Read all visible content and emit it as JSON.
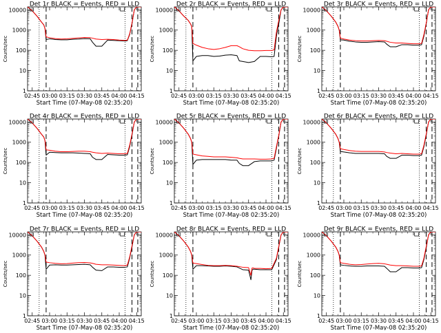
{
  "figure": {
    "x_ticks": [
      "02:45",
      "03:00",
      "03:15",
      "03:30",
      "03:45",
      "04:00",
      "04:15"
    ],
    "x_tick_minutes": [
      0,
      15,
      30,
      45,
      60,
      75,
      90
    ],
    "x_range_minutes": [
      -4,
      94
    ],
    "y_ticks": [
      "1",
      "10",
      "100",
      "1000",
      "10000"
    ],
    "y_tick_values": [
      1,
      10,
      100,
      1000,
      10000
    ],
    "y_range": [
      1,
      14000
    ],
    "y_scale": "log",
    "series_colors": {
      "events": "#000000",
      "lld": "#ff0000"
    }
  },
  "chart_data": [
    {
      "type": "line",
      "y_scale": "log",
      "title": "Det 1r BLACK = Events, RED = LLD",
      "xlabel": "Start Time (07-May-08 02:35:20)",
      "ylabel": "Counts/sec",
      "x_minutes": [
        -4,
        0,
        4,
        8,
        10,
        11,
        12,
        15,
        20,
        25,
        30,
        35,
        40,
        45,
        50,
        52,
        55,
        60,
        65,
        70,
        75,
        80,
        82,
        84,
        86,
        88,
        90,
        92,
        94
      ],
      "events": [
        14000,
        9000,
        5000,
        2500,
        1800,
        1200,
        340,
        370,
        340,
        330,
        330,
        350,
        360,
        380,
        370,
        250,
        160,
        160,
        320,
        310,
        300,
        290,
        300,
        600,
        2000,
        10000,
        14000,
        14000,
        14000
      ],
      "lld": [
        14000,
        9000,
        5000,
        2500,
        1800,
        1200,
        460,
        420,
        380,
        360,
        370,
        390,
        410,
        430,
        420,
        400,
        360,
        340,
        350,
        340,
        320,
        310,
        320,
        650,
        2200,
        10000,
        14000,
        14000,
        14000
      ],
      "dotted_lines": [
        6,
        80,
        95
      ],
      "dashed_lines": [
        12,
        86,
        91
      ]
    },
    {
      "type": "line",
      "y_scale": "log",
      "title": "Det 2r BLACK = Events, RED = LLD",
      "xlabel": "Start Time (07-May-08 02:35:20)",
      "ylabel": "Counts/sec",
      "x_minutes": [
        -4,
        0,
        4,
        8,
        10,
        11,
        12,
        15,
        20,
        25,
        30,
        35,
        40,
        45,
        50,
        52,
        55,
        60,
        65,
        70,
        75,
        80,
        82,
        84,
        86,
        88,
        90,
        92,
        94
      ],
      "events": [
        14000,
        9000,
        5000,
        3000,
        2000,
        1500,
        30,
        50,
        55,
        55,
        50,
        52,
        58,
        60,
        55,
        30,
        28,
        25,
        28,
        50,
        50,
        48,
        50,
        500,
        2000,
        10000,
        14000,
        14000,
        14000
      ],
      "lld": [
        14000,
        9000,
        5000,
        3000,
        2000,
        1500,
        220,
        180,
        140,
        120,
        110,
        120,
        140,
        170,
        170,
        150,
        120,
        100,
        95,
        95,
        98,
        98,
        105,
        800,
        3000,
        10000,
        14000,
        14000,
        14000
      ],
      "dotted_lines": [
        6,
        80,
        95
      ],
      "dashed_lines": [
        12,
        86,
        91
      ]
    },
    {
      "type": "line",
      "y_scale": "log",
      "title": "Det 3r BLACK = Events, RED = LLD",
      "xlabel": "Start Time (07-May-08 02:35:20)",
      "ylabel": "Counts/sec",
      "x_minutes": [
        -4,
        0,
        4,
        8,
        10,
        11,
        12,
        15,
        20,
        25,
        30,
        35,
        40,
        45,
        50,
        52,
        55,
        60,
        65,
        70,
        75,
        80,
        82,
        84,
        86,
        88,
        90,
        92,
        94
      ],
      "events": [
        14000,
        9000,
        5000,
        2500,
        1500,
        1000,
        330,
        320,
        280,
        260,
        250,
        250,
        260,
        270,
        260,
        200,
        150,
        150,
        190,
        190,
        180,
        180,
        190,
        500,
        2000,
        10000,
        14000,
        14000,
        14000
      ],
      "lld": [
        14000,
        9000,
        5000,
        2500,
        1500,
        1000,
        400,
        360,
        320,
        300,
        290,
        290,
        300,
        310,
        300,
        280,
        250,
        230,
        230,
        220,
        210,
        210,
        220,
        600,
        2200,
        10000,
        14000,
        14000,
        14000
      ],
      "dotted_lines": [
        6,
        80,
        95
      ],
      "dashed_lines": [
        12,
        86,
        91
      ]
    },
    {
      "type": "line",
      "y_scale": "log",
      "title": "Det 4r BLACK = Events, RED = LLD",
      "xlabel": "Start Time (07-May-08 02:35:20)",
      "ylabel": "Counts/sec",
      "x_minutes": [
        -4,
        0,
        4,
        8,
        10,
        11,
        12,
        15,
        20,
        25,
        30,
        35,
        40,
        45,
        50,
        52,
        55,
        60,
        65,
        70,
        75,
        80,
        82,
        84,
        86,
        88,
        90,
        92,
        94
      ],
      "events": [
        14000,
        9000,
        5000,
        2500,
        1800,
        1200,
        230,
        320,
        310,
        300,
        300,
        300,
        290,
        280,
        270,
        180,
        140,
        140,
        250,
        240,
        230,
        230,
        240,
        600,
        2200,
        10000,
        14000,
        14000,
        14000
      ],
      "lld": [
        14000,
        9000,
        5000,
        2500,
        1800,
        1200,
        420,
        400,
        360,
        340,
        340,
        350,
        360,
        360,
        340,
        320,
        300,
        280,
        290,
        280,
        270,
        270,
        280,
        700,
        2500,
        10000,
        14000,
        14000,
        14000
      ],
      "dotted_lines": [
        6,
        80,
        95
      ],
      "dashed_lines": [
        12,
        86,
        91
      ]
    },
    {
      "type": "line",
      "y_scale": "log",
      "title": "Det 5r BLACK = Events, RED = LLD",
      "xlabel": "Start Time (07-May-08 02:35:20)",
      "ylabel": "Counts/sec",
      "x_minutes": [
        -4,
        0,
        4,
        8,
        10,
        11,
        12,
        15,
        20,
        25,
        30,
        35,
        40,
        45,
        50,
        52,
        55,
        60,
        65,
        70,
        75,
        80,
        82,
        84,
        86,
        88,
        90,
        92,
        94
      ],
      "events": [
        14000,
        9000,
        5000,
        2500,
        1500,
        1000,
        80,
        130,
        140,
        140,
        140,
        140,
        140,
        130,
        130,
        90,
        70,
        70,
        110,
        120,
        120,
        120,
        130,
        500,
        2000,
        10000,
        14000,
        14000,
        14000
      ],
      "lld": [
        14000,
        9000,
        5000,
        2500,
        1500,
        1000,
        260,
        240,
        210,
        200,
        190,
        190,
        190,
        180,
        170,
        160,
        150,
        150,
        150,
        145,
        145,
        150,
        160,
        600,
        2200,
        10000,
        14000,
        14000,
        14000
      ],
      "dotted_lines": [
        6,
        80,
        95
      ],
      "dashed_lines": [
        12,
        86,
        91
      ]
    },
    {
      "type": "line",
      "y_scale": "log",
      "title": "Det 6r BLACK = Events, RED = LLD",
      "xlabel": "Start Time (07-May-08 02:35:20)",
      "ylabel": "Counts/sec",
      "x_minutes": [
        -4,
        0,
        4,
        8,
        10,
        11,
        12,
        15,
        20,
        25,
        30,
        35,
        40,
        45,
        50,
        52,
        55,
        60,
        65,
        70,
        75,
        80,
        82,
        84,
        86,
        88,
        90,
        92,
        94
      ],
      "events": [
        14000,
        9000,
        5000,
        2500,
        1500,
        1000,
        350,
        330,
        300,
        280,
        280,
        280,
        280,
        280,
        270,
        200,
        160,
        160,
        230,
        230,
        220,
        220,
        230,
        600,
        2200,
        10000,
        14000,
        14000,
        14000
      ],
      "lld": [
        14000,
        9000,
        5000,
        2500,
        1500,
        1000,
        480,
        440,
        390,
        360,
        350,
        350,
        350,
        350,
        330,
        310,
        290,
        270,
        280,
        270,
        260,
        260,
        270,
        700,
        2500,
        10000,
        14000,
        14000,
        14000
      ],
      "dotted_lines": [
        6,
        80,
        95
      ],
      "dashed_lines": [
        12,
        86,
        91
      ]
    },
    {
      "type": "line",
      "y_scale": "log",
      "title": "Det 7r BLACK = Events, RED = LLD",
      "xlabel": "Start Time (07-May-08 02:35:20)",
      "ylabel": "Counts/sec",
      "x_minutes": [
        -4,
        0,
        4,
        8,
        10,
        11,
        12,
        15,
        20,
        25,
        30,
        35,
        40,
        45,
        50,
        52,
        55,
        60,
        65,
        70,
        75,
        80,
        82,
        84,
        86,
        88,
        90,
        92,
        94
      ],
      "events": [
        14000,
        9000,
        5000,
        2500,
        1500,
        1000,
        200,
        320,
        330,
        320,
        320,
        330,
        340,
        350,
        330,
        250,
        180,
        170,
        260,
        260,
        250,
        250,
        260,
        700,
        2500,
        10000,
        14000,
        14000,
        14000
      ],
      "lld": [
        14000,
        9000,
        5000,
        2500,
        1500,
        1000,
        450,
        420,
        390,
        370,
        380,
        400,
        420,
        430,
        410,
        390,
        350,
        330,
        330,
        320,
        310,
        300,
        320,
        800,
        2800,
        10000,
        14000,
        14000,
        14000
      ],
      "dotted_lines": [
        6,
        80,
        95
      ],
      "dashed_lines": [
        12,
        86,
        91
      ]
    },
    {
      "type": "line",
      "y_scale": "log",
      "title": "Det 8r BLACK = Events, RED = LLD",
      "xlabel": "Start Time (07-May-08 02:35:20)",
      "ylabel": "Counts/sec",
      "x_minutes": [
        -4,
        0,
        4,
        8,
        10,
        11,
        12,
        15,
        20,
        25,
        30,
        35,
        40,
        45,
        50,
        55,
        60,
        62,
        63,
        64,
        65,
        70,
        75,
        80,
        84,
        88,
        90,
        92,
        94
      ],
      "events": [
        14000,
        9000,
        5000,
        2500,
        1500,
        1000,
        200,
        300,
        300,
        290,
        280,
        280,
        290,
        280,
        260,
        190,
        180,
        60,
        180,
        200,
        200,
        190,
        190,
        190,
        600,
        10000,
        14000,
        14000,
        14000
      ],
      "lld": [
        14000,
        9000,
        5000,
        2500,
        1500,
        1000,
        400,
        380,
        340,
        310,
        300,
        300,
        310,
        300,
        280,
        250,
        240,
        100,
        230,
        230,
        220,
        220,
        210,
        220,
        700,
        10000,
        14000,
        14000,
        14000
      ],
      "dotted_lines": [
        6,
        80,
        95
      ],
      "dashed_lines": [
        12,
        86,
        91
      ]
    },
    {
      "type": "line",
      "y_scale": "log",
      "title": "Det 9r BLACK = Events, RED = LLD",
      "xlabel": "Start Time (07-May-08 02:35:20)",
      "ylabel": "Counts/sec",
      "x_minutes": [
        -4,
        0,
        4,
        8,
        10,
        11,
        12,
        15,
        20,
        25,
        30,
        35,
        40,
        45,
        50,
        52,
        55,
        60,
        65,
        70,
        75,
        80,
        82,
        84,
        86,
        88,
        90,
        92,
        94
      ],
      "events": [
        14000,
        9000,
        5000,
        2500,
        1500,
        1000,
        330,
        310,
        290,
        280,
        280,
        290,
        290,
        290,
        280,
        220,
        150,
        150,
        240,
        240,
        230,
        230,
        240,
        600,
        2200,
        10000,
        14000,
        14000,
        14000
      ],
      "lld": [
        14000,
        9000,
        5000,
        2500,
        1500,
        1000,
        420,
        390,
        350,
        330,
        340,
        360,
        380,
        390,
        370,
        350,
        320,
        300,
        300,
        290,
        280,
        280,
        290,
        700,
        2600,
        10000,
        14000,
        14000,
        14000
      ],
      "dotted_lines": [
        6,
        80,
        95
      ],
      "dashed_lines": [
        12,
        86,
        91
      ]
    }
  ]
}
